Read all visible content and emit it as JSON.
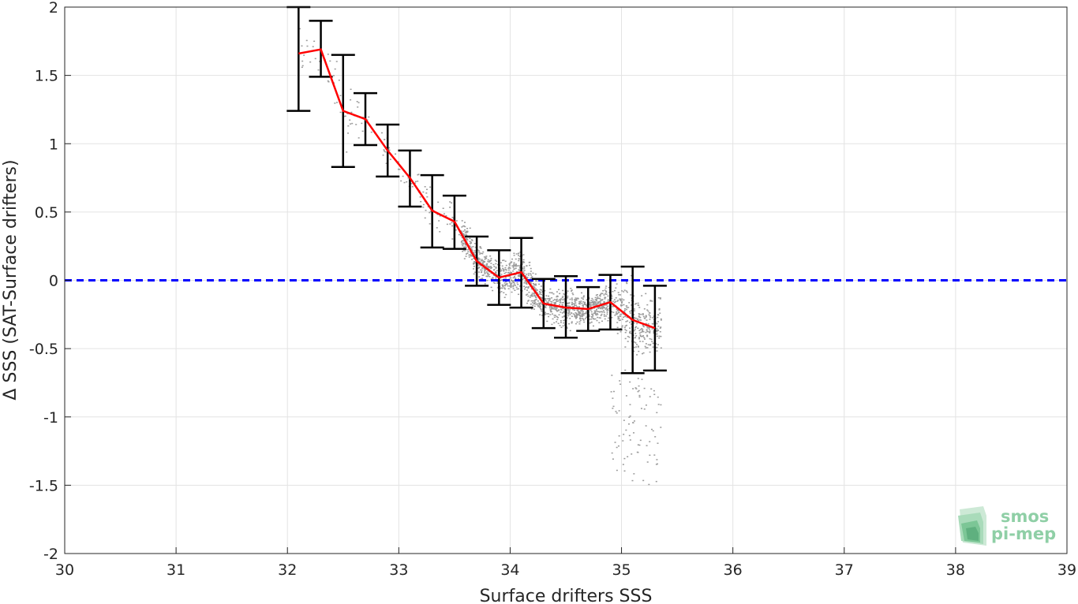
{
  "chart_data": {
    "type": "scatter",
    "title": "",
    "xlabel": "Surface drifters SSS",
    "ylabel": "Δ SSS (SAT-Surface drifters)",
    "xlim": [
      30,
      39
    ],
    "ylim": [
      -2,
      2
    ],
    "xticks": [
      30,
      31,
      32,
      33,
      34,
      35,
      36,
      37,
      38,
      39
    ],
    "yticks": [
      -2,
      -1.5,
      -1,
      -0.5,
      0,
      0.5,
      1,
      1.5,
      2
    ],
    "grid": true,
    "legend": "none",
    "reference_line": {
      "y": 0,
      "style": "dashed",
      "color": "#0000ff"
    },
    "series": [
      {
        "type": "line",
        "color": "#ff0000",
        "x": [
          32.1,
          32.3,
          32.5,
          32.7,
          32.9,
          33.1,
          33.3,
          33.5,
          33.7,
          33.9,
          34.1,
          34.3,
          34.5,
          34.7,
          34.9,
          35.1,
          35.3
        ],
        "y": [
          1.66,
          1.69,
          1.24,
          1.18,
          0.95,
          0.75,
          0.51,
          0.43,
          0.14,
          0.02,
          0.06,
          -0.17,
          -0.2,
          -0.21,
          -0.16,
          -0.29,
          -0.35
        ]
      },
      {
        "type": "errorbar",
        "color": "#000000",
        "x": [
          32.1,
          32.3,
          32.5,
          32.7,
          32.9,
          33.1,
          33.3,
          33.5,
          33.7,
          33.9,
          34.1,
          34.3,
          34.5,
          34.7,
          34.9,
          35.1,
          35.3
        ],
        "lower": [
          1.24,
          1.49,
          0.83,
          0.99,
          0.76,
          0.54,
          0.24,
          0.23,
          -0.04,
          -0.18,
          -0.2,
          -0.35,
          -0.42,
          -0.37,
          -0.36,
          -0.68,
          -0.66
        ],
        "upper": [
          2.0,
          1.9,
          1.65,
          1.37,
          1.14,
          0.95,
          0.77,
          0.62,
          0.32,
          0.22,
          0.31,
          0.01,
          0.03,
          -0.05,
          0.04,
          0.1,
          -0.04
        ]
      },
      {
        "type": "scatter",
        "color": "#999999",
        "x_range": [
          32.1,
          35.35
        ],
        "y_range": [
          -1.45,
          1.65
        ]
      }
    ]
  },
  "logo": {
    "line1": "smos",
    "line2": "pi-mep",
    "color": "#8fcfa6"
  }
}
